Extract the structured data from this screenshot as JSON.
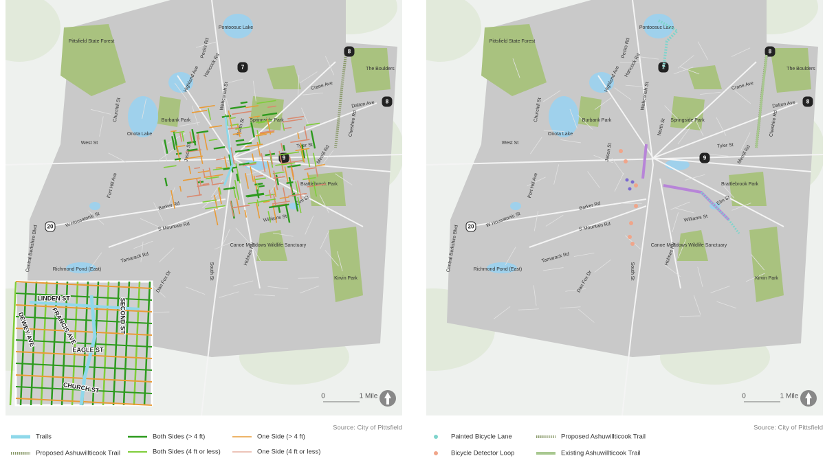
{
  "base_labels": [
    "Pittsfield State Forest",
    "Pontoosuc Lake",
    "Hancock Rd",
    "Pecks Rd",
    "Highland Ave",
    "Crane Ave",
    "Dalton Ave",
    "The Boulders",
    "Onota Lake",
    "Burbank Park",
    "Springside Park",
    "Churchill St",
    "West St",
    "Jason St",
    "Fort Hill Ave",
    "Barker Rd",
    "W Housatonic St",
    "S Mountain Rd",
    "Tamarack Rd",
    "Richmond Pond (East)",
    "Canoe Meadows Wildlife Sanctuary",
    "Holmes Rd",
    "South St",
    "Dan Fox Dr",
    "Williams St",
    "Elm St",
    "Brattlebrook Park",
    "Merrill Rd",
    "Tyler St",
    "North St",
    "Cheshire Rd",
    "Kirvin Park",
    "Central Berkshire Blvd",
    "Wahconah St"
  ],
  "route_shields": [
    "7",
    "8",
    "8",
    "9",
    "20"
  ],
  "maps": [
    {
      "inset_labels": [
        "LINDEN ST",
        "DEWEY AVE",
        "FRANCIS AVE",
        "SECOND ST",
        "EAGLE ST",
        "CHURCH ST"
      ],
      "scale": {
        "zero": "0",
        "mile": "1 Mile"
      },
      "source": "Source: City of Pittsfield",
      "legend": [
        "Trails",
        "Proposed Ashuwillticook Trail",
        "Both Sides (> 4 ft)",
        "Both Sides (4 ft or less)",
        "One Side (> 4 ft)",
        "One Side (4 ft or less)"
      ]
    },
    {
      "scale": {
        "zero": "0",
        "mile": "1 Mile"
      },
      "source": "Source: City of Pittsfield",
      "legend": [
        "Painted Bicycle Lane",
        "Bicycle Detector Loop",
        "Proposed Ashuwillticook Trail",
        "Existing Ashuwillticook Trail"
      ]
    }
  ]
}
